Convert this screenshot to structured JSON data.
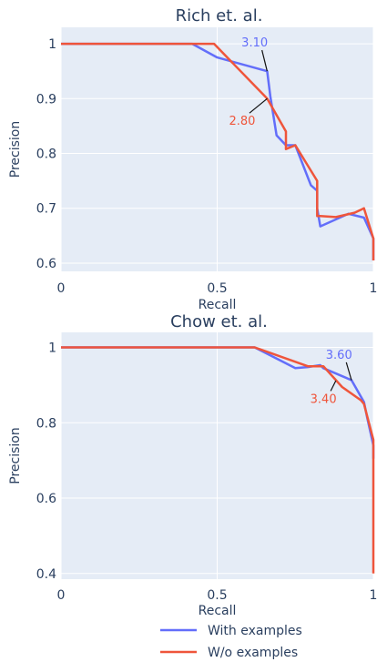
{
  "colors": {
    "with_examples": "#636efa",
    "without_examples": "#ef553b",
    "plot_bg": "#e5ecf6",
    "grid": "#ffffff",
    "text": "#2a3f5f"
  },
  "legend": {
    "position": "bottom",
    "entries": [
      "With examples",
      "W/o examples"
    ]
  },
  "chart_data": [
    {
      "type": "line",
      "title": "Rich et. al.",
      "xlabel": "Recall",
      "ylabel": "Precision",
      "xlim": [
        0,
        1
      ],
      "ylim": [
        0.585,
        1.03
      ],
      "x_ticks": [
        0,
        0.5,
        1
      ],
      "x_tick_labels": [
        "0",
        "0.5",
        "1"
      ],
      "y_ticks": [
        0.6,
        0.7,
        0.8,
        0.9,
        1
      ],
      "y_tick_labels": [
        "0.6",
        "0.7",
        "0.8",
        "0.9",
        "1"
      ],
      "grid": true,
      "series": [
        {
          "name": "With examples",
          "x": [
            0,
            0.42,
            0.5,
            0.66,
            0.67,
            0.69,
            0.72,
            0.75,
            0.8,
            0.82,
            0.82,
            0.83,
            0.92,
            0.97,
            1,
            1
          ],
          "y": [
            1,
            1,
            0.975,
            0.95,
            0.905,
            0.833,
            0.815,
            0.815,
            0.742,
            0.732,
            0.7,
            0.667,
            0.69,
            0.683,
            0.645,
            0.605
          ]
        },
        {
          "name": "W/o examples",
          "x": [
            0,
            0.49,
            0.66,
            0.72,
            0.72,
            0.75,
            0.82,
            0.82,
            0.83,
            0.88,
            0.94,
            0.97,
            1,
            1
          ],
          "y": [
            1,
            1,
            0.9,
            0.84,
            0.808,
            0.815,
            0.75,
            0.686,
            0.686,
            0.684,
            0.692,
            0.7,
            0.645,
            0.605
          ]
        }
      ],
      "annotations": [
        {
          "text": "3.10",
          "series": "With examples",
          "x": 0.66,
          "y": 0.95,
          "text_x": 0.62,
          "text_y": 0.995
        },
        {
          "text": "2.80",
          "series": "W/o examples",
          "x": 0.66,
          "y": 0.9,
          "text_x": 0.58,
          "text_y": 0.852
        }
      ]
    },
    {
      "type": "line",
      "title": "Chow et. al.",
      "xlabel": "Recall",
      "ylabel": "Precision",
      "xlim": [
        0,
        1
      ],
      "ylim": [
        0.385,
        1.04
      ],
      "x_ticks": [
        0,
        0.5,
        1
      ],
      "x_tick_labels": [
        "0",
        "0.5",
        "1"
      ],
      "y_ticks": [
        0.4,
        0.6,
        0.8,
        1
      ],
      "y_tick_labels": [
        "0.4",
        "0.6",
        "0.8",
        "1"
      ],
      "grid": true,
      "series": [
        {
          "name": "With examples",
          "x": [
            0,
            0.62,
            0.75,
            0.79,
            0.83,
            0.84,
            0.93,
            0.97,
            0.98,
            1,
            1
          ],
          "y": [
            1,
            1,
            0.945,
            0.948,
            0.953,
            0.945,
            0.913,
            0.855,
            0.815,
            0.74,
            0.705
          ]
        },
        {
          "name": "W/o examples",
          "x": [
            0,
            0.62,
            0.79,
            0.84,
            0.9,
            0.96,
            0.97,
            1,
            1
          ],
          "y": [
            1,
            1,
            0.95,
            0.95,
            0.895,
            0.86,
            0.85,
            0.755,
            0.4
          ]
        }
      ],
      "annotations": [
        {
          "text": "3.60",
          "series": "With examples",
          "x": 0.93,
          "y": 0.913,
          "text_x": 0.89,
          "text_y": 0.97
        },
        {
          "text": "3.40",
          "series": "W/o examples",
          "x": 0.88,
          "y": 0.912,
          "text_x": 0.84,
          "text_y": 0.853
        }
      ]
    }
  ]
}
